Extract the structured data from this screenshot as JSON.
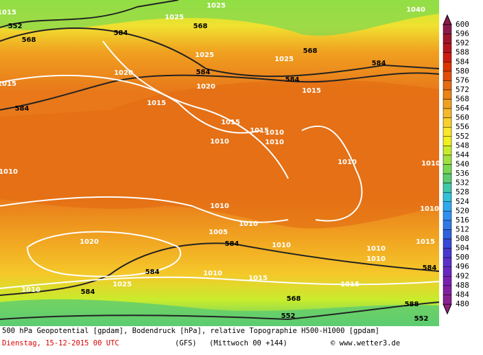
{
  "colorbar": {
    "levels": [
      "600",
      "596",
      "592",
      "588",
      "584",
      "580",
      "576",
      "572",
      "568",
      "564",
      "560",
      "556",
      "552",
      "548",
      "544",
      "540",
      "536",
      "532",
      "528",
      "524",
      "520",
      "516",
      "512",
      "508",
      "504",
      "500",
      "496",
      "492",
      "488",
      "484",
      "480"
    ],
    "colors": [
      "#8b1a4a",
      "#a0142d",
      "#b5141e",
      "#cc1a10",
      "#dd3300",
      "#e24d0a",
      "#e66a10",
      "#ec8214",
      "#f0a020",
      "#f5b82a",
      "#f8cf2e",
      "#fae62c",
      "#f0f020",
      "#c8ec2c",
      "#a0e040",
      "#7ad850",
      "#5ccc70",
      "#40c8a8",
      "#30c0d8",
      "#30a8f0",
      "#3090f0",
      "#3078e8",
      "#3060e0",
      "#3848d8",
      "#4838d0",
      "#5a30c8",
      "#6828c0",
      "#7820b0",
      "#8020a0",
      "#882090",
      "#902080"
    ]
  },
  "map_labels": [
    "552",
    "568",
    "584",
    "568",
    "1025",
    "1025",
    "584",
    "1020",
    "1020",
    "1015",
    "584",
    "1015",
    "1015",
    "584",
    "568",
    "1025",
    "1025",
    "1040",
    "584",
    "1015",
    "1010",
    "1010",
    "1010",
    "1015",
    "1010",
    "1010",
    "1010",
    "1010",
    "1005",
    "584",
    "1010",
    "1020",
    "1025",
    "584",
    "584",
    "1010",
    "1015",
    "1015",
    "1010",
    "1015",
    "584",
    "568",
    "588",
    "552",
    "552",
    "1010",
    "1010",
    "1010",
    "1015",
    "1010"
  ],
  "caption": {
    "line1": "500 hPa Geopotential [gpdam], Bodendruck [hPa], relative Topographie H500-H1000 [gpdam]",
    "date": "Dienstag, 15-12-2015  00 UTC",
    "model": "(GFS)",
    "run": "(Mittwoch 00 +144)",
    "credit": "© www.wetter3.de"
  }
}
